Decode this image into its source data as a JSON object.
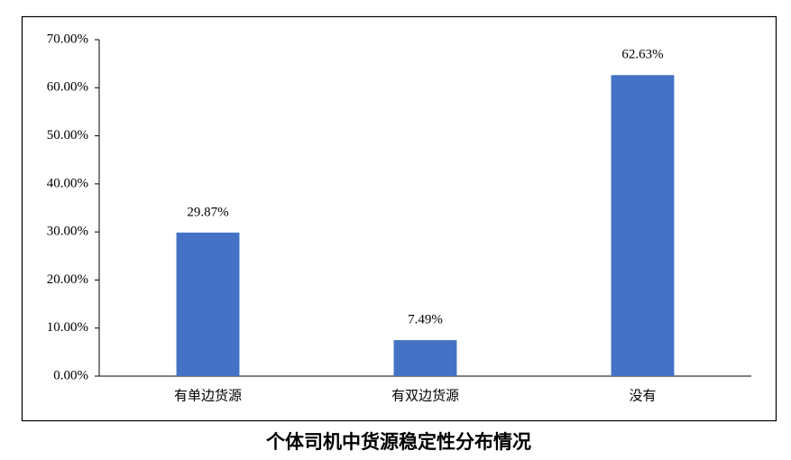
{
  "chart_data": {
    "type": "bar",
    "title": "个体司机中货源稳定性分布情况",
    "categories": [
      "有单边货源",
      "有双边货源",
      "没有"
    ],
    "values": [
      29.87,
      7.49,
      62.63
    ],
    "value_labels": [
      "29.87%",
      "7.49%",
      "62.63%"
    ],
    "color": "#4472c4",
    "ylim": [
      0,
      70
    ],
    "yticks": [
      {
        "value": 0,
        "label": "0.00%"
      },
      {
        "value": 10,
        "label": "10.00%"
      },
      {
        "value": 20,
        "label": "20.00%"
      },
      {
        "value": 30,
        "label": "30.00%"
      },
      {
        "value": 40,
        "label": "40.00%"
      },
      {
        "value": 50,
        "label": "50.00%"
      },
      {
        "value": 60,
        "label": "60.00%"
      },
      {
        "value": 70,
        "label": "70.00%"
      }
    ],
    "grid": false
  }
}
